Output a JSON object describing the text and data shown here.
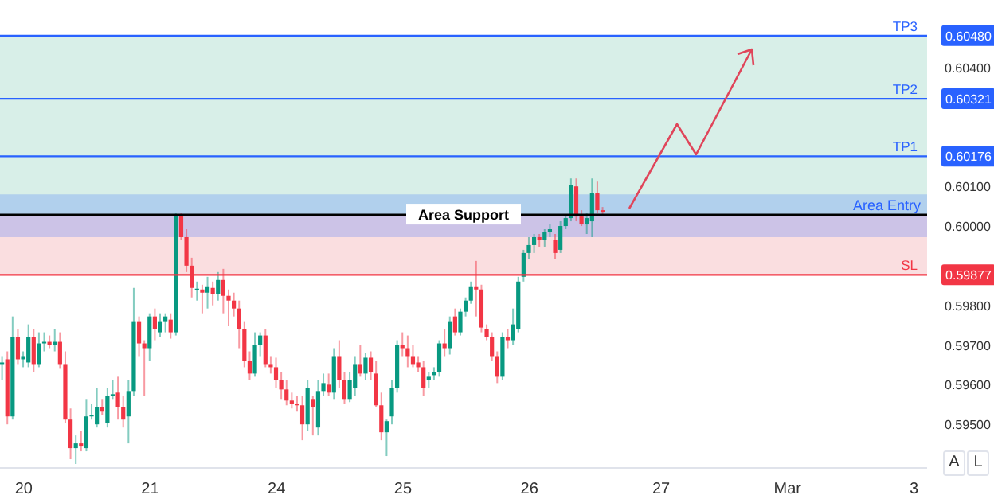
{
  "chart_data": {
    "type": "candlestick",
    "categories": [
      null,
      null,
      null,
      null,
      "20",
      null,
      null,
      null,
      null,
      null,
      null,
      null,
      null,
      null,
      null,
      null,
      null,
      null,
      null,
      null,
      null,
      null,
      null,
      null,
      null,
      null,
      null,
      null,
      "21",
      null,
      null,
      null,
      null,
      null,
      null,
      null,
      null,
      null,
      null,
      null,
      null,
      null,
      null,
      null,
      null,
      null,
      null,
      null,
      null,
      null,
      null,
      null,
      "24",
      null,
      null,
      null,
      null,
      null,
      null,
      null,
      null,
      null,
      null,
      null,
      null,
      null,
      null,
      null,
      null,
      null,
      null,
      null,
      null,
      null,
      null,
      null,
      "25",
      null,
      null,
      null,
      null,
      null,
      null,
      null,
      null,
      null,
      null,
      null,
      null,
      null,
      null,
      null,
      null,
      null,
      null,
      null,
      null,
      null,
      null,
      null,
      "26",
      null,
      null,
      null,
      null,
      null,
      null,
      null,
      null,
      null,
      null,
      null,
      null,
      null,
      null,
      null,
      null,
      null,
      null,
      null,
      null,
      null,
      null,
      null,
      null,
      "27",
      null,
      null,
      null,
      null,
      null,
      null,
      null,
      null,
      null,
      null,
      null,
      null,
      null,
      null,
      null,
      null,
      null,
      null,
      null,
      null,
      null,
      null,
      null,
      "Mar",
      null,
      null,
      null,
      null,
      null,
      null,
      null,
      null,
      null,
      null,
      null,
      null,
      null,
      null,
      null,
      null,
      null,
      null,
      null,
      null,
      null,
      null,
      null,
      "3",
      null,
      null
    ],
    "ohlc": [
      [
        0.59652,
        0.59672,
        0.59612,
        0.59656
      ],
      [
        0.59664,
        0.59684,
        0.595,
        0.5952
      ],
      [
        0.5952,
        0.59772,
        0.59512,
        0.5972
      ],
      [
        0.5972,
        0.5974,
        0.59652,
        0.59664
      ],
      [
        0.59664,
        0.59684,
        0.59644,
        0.59672
      ],
      [
        0.59656,
        0.59752,
        0.59644,
        0.5972
      ],
      [
        0.5972,
        0.5974,
        0.59632,
        0.59652
      ],
      [
        0.59652,
        0.59732,
        0.59644,
        0.59704
      ],
      [
        0.59704,
        0.59732,
        0.59684,
        0.59708
      ],
      [
        0.59708,
        0.59724,
        0.59692,
        0.597
      ],
      [
        0.597,
        0.5974,
        0.59684,
        0.59708
      ],
      [
        0.59708,
        0.59732,
        0.5964,
        0.59652
      ],
      [
        0.59652,
        0.59684,
        0.59504,
        0.59512
      ],
      [
        0.59512,
        0.5954,
        0.59412,
        0.5944
      ],
      [
        0.5944,
        0.59472,
        0.594,
        0.59452
      ],
      [
        0.59452,
        0.59484,
        0.59432,
        0.59444
      ],
      [
        0.5944,
        0.59564,
        0.59432,
        0.5952
      ],
      [
        0.5952,
        0.59552,
        0.59512,
        0.59524
      ],
      [
        0.595,
        0.59592,
        0.59492,
        0.59544
      ],
      [
        0.59544,
        0.59564,
        0.59524,
        0.59532
      ],
      [
        0.59504,
        0.59592,
        0.59492,
        0.59572
      ],
      [
        0.59572,
        0.59612,
        0.59564,
        0.59576
      ],
      [
        0.5958,
        0.5962,
        0.59512,
        0.59544
      ],
      [
        0.59544,
        0.59572,
        0.59492,
        0.59512
      ],
      [
        0.5952,
        0.59612,
        0.59452,
        0.59584
      ],
      [
        0.59584,
        0.59844,
        0.59572,
        0.5976
      ],
      [
        0.5976,
        0.59772,
        0.59672,
        0.59704
      ],
      [
        0.59704,
        0.59712,
        0.59572,
        0.59692
      ],
      [
        0.59692,
        0.5978,
        0.5966,
        0.59772
      ],
      [
        0.59772,
        0.59792,
        0.59712,
        0.5974
      ],
      [
        0.59732,
        0.5978,
        0.5972,
        0.5976
      ],
      [
        0.5976,
        0.5978,
        0.59732,
        0.59772
      ],
      [
        0.59764,
        0.5978,
        0.59716,
        0.59732
      ],
      [
        0.59732,
        0.60032,
        0.59724,
        0.60028
      ],
      [
        0.60028,
        0.60032,
        0.59964,
        0.59972
      ],
      [
        0.59972,
        0.59992,
        0.59884,
        0.599
      ],
      [
        0.599,
        0.5992,
        0.5982,
        0.59844
      ],
      [
        0.5984,
        0.5986,
        0.59812,
        0.59842
      ],
      [
        0.5984,
        0.59852,
        0.5978,
        0.59832
      ],
      [
        0.59832,
        0.59872,
        0.59792,
        0.59848
      ],
      [
        0.59844,
        0.5986,
        0.598,
        0.59828
      ],
      [
        0.59828,
        0.59884,
        0.59812,
        0.59864
      ],
      [
        0.59864,
        0.59892,
        0.5978,
        0.59824
      ],
      [
        0.59824,
        0.5984,
        0.59748,
        0.59812
      ],
      [
        0.59812,
        0.59832,
        0.59772,
        0.59792
      ],
      [
        0.59792,
        0.59812,
        0.59692,
        0.5974
      ],
      [
        0.5974,
        0.5976,
        0.59644,
        0.5966
      ],
      [
        0.5966,
        0.59684,
        0.59612,
        0.59628
      ],
      [
        0.59628,
        0.59732,
        0.5962,
        0.597
      ],
      [
        0.597,
        0.59732,
        0.59672,
        0.59724
      ],
      [
        0.59724,
        0.5974,
        0.59644,
        0.59652
      ],
      [
        0.59652,
        0.59672,
        0.59628,
        0.59644
      ],
      [
        0.59644,
        0.59668,
        0.59592,
        0.59612
      ],
      [
        0.59612,
        0.59632,
        0.59564,
        0.59588
      ],
      [
        0.59588,
        0.59612,
        0.59548,
        0.5956
      ],
      [
        0.5956,
        0.5958,
        0.5954,
        0.59552
      ],
      [
        0.59552,
        0.59572,
        0.59532,
        0.59548
      ],
      [
        0.59548,
        0.59572,
        0.5946,
        0.595
      ],
      [
        0.595,
        0.59612,
        0.59484,
        0.59592
      ],
      [
        0.59564,
        0.59572,
        0.59472,
        0.59544
      ],
      [
        0.59492,
        0.59612,
        0.59472,
        0.59584
      ],
      [
        0.59584,
        0.59628,
        0.59572,
        0.59604
      ],
      [
        0.596,
        0.59628,
        0.59572,
        0.5958
      ],
      [
        0.5958,
        0.59692,
        0.59564,
        0.59672
      ],
      [
        0.59672,
        0.59712,
        0.59592,
        0.59612
      ],
      [
        0.59612,
        0.59632,
        0.59552,
        0.59564
      ],
      [
        0.59564,
        0.59632,
        0.59556,
        0.59612
      ],
      [
        0.59592,
        0.59672,
        0.59572,
        0.59652
      ],
      [
        0.59652,
        0.597,
        0.5962,
        0.59628
      ],
      [
        0.59628,
        0.5968,
        0.59612,
        0.59668
      ],
      [
        0.59668,
        0.59684,
        0.59612,
        0.59632
      ],
      [
        0.59628,
        0.5966,
        0.59544,
        0.59548
      ],
      [
        0.59548,
        0.5958,
        0.5946,
        0.5948
      ],
      [
        0.5948,
        0.59512,
        0.5942,
        0.59508
      ],
      [
        0.5952,
        0.59612,
        0.595,
        0.59592
      ],
      [
        0.59592,
        0.59712,
        0.5958,
        0.597
      ],
      [
        0.597,
        0.59732,
        0.59672,
        0.59692
      ],
      [
        0.59692,
        0.59724,
        0.59644,
        0.59672
      ],
      [
        0.59672,
        0.597,
        0.59644,
        0.59652
      ],
      [
        0.59656,
        0.59672,
        0.59632,
        0.59644
      ],
      [
        0.59644,
        0.5966,
        0.59572,
        0.59592
      ],
      [
        0.59612,
        0.59632,
        0.59592,
        0.5962
      ],
      [
        0.59624,
        0.59644,
        0.59612,
        0.59632
      ],
      [
        0.59632,
        0.59712,
        0.5962,
        0.59704
      ],
      [
        0.59704,
        0.5974,
        0.59672,
        0.59692
      ],
      [
        0.59692,
        0.59772,
        0.59676,
        0.5976
      ],
      [
        0.59772,
        0.59792,
        0.59724,
        0.59732
      ],
      [
        0.59732,
        0.59792,
        0.59724,
        0.59784
      ],
      [
        0.59784,
        0.5982,
        0.59772,
        0.59812
      ],
      [
        0.59812,
        0.5986,
        0.59804,
        0.59848
      ],
      [
        0.59848,
        0.59912,
        0.59772,
        0.5984
      ],
      [
        0.5984,
        0.59852,
        0.59732,
        0.59744
      ],
      [
        0.5974,
        0.59752,
        0.59712,
        0.5972
      ],
      [
        0.5972,
        0.59732,
        0.5966,
        0.59672
      ],
      [
        0.59672,
        0.59684,
        0.59604,
        0.5962
      ],
      [
        0.5962,
        0.59732,
        0.59612,
        0.5972
      ],
      [
        0.5972,
        0.5974,
        0.59692,
        0.59712
      ],
      [
        0.59712,
        0.59792,
        0.597,
        0.59752
      ],
      [
        0.5974,
        0.59872,
        0.59732,
        0.5986
      ],
      [
        0.59872,
        0.5994,
        0.5986,
        0.59932
      ],
      [
        0.59932,
        0.59972,
        0.59916,
        0.59952
      ],
      [
        0.59952,
        0.5998,
        0.59932,
        0.59972
      ],
      [
        0.59972,
        0.5998,
        0.59948,
        0.59964
      ],
      [
        0.59964,
        0.59992,
        0.59948,
        0.59984
      ],
      [
        0.59984,
        0.60004,
        0.59972,
        0.59992
      ],
      [
        0.59964,
        0.5998,
        0.59916,
        0.59932
      ],
      [
        0.5994,
        0.60012,
        0.59932,
        0.6
      ],
      [
        0.6,
        0.60028,
        0.59992,
        0.6002
      ],
      [
        0.6002,
        0.6012,
        0.60012,
        0.60104
      ],
      [
        0.601,
        0.6012,
        0.60012,
        0.60024
      ],
      [
        0.60024,
        0.6004,
        0.6,
        0.60004
      ],
      [
        0.60004,
        0.60032,
        0.5998,
        0.6002
      ],
      [
        0.60012,
        0.6012,
        0.59972,
        0.60084
      ],
      [
        0.60084,
        0.60112,
        0.60032,
        0.6004
      ],
      [
        0.6004,
        0.60048,
        0.60028,
        0.60036
      ],
      null,
      null,
      null,
      null,
      null,
      null,
      null,
      null,
      null,
      null,
      null,
      null,
      null,
      null,
      null,
      null,
      null,
      null,
      null,
      null,
      null,
      null,
      null,
      null,
      null,
      null,
      null,
      null,
      null,
      null,
      null,
      null,
      null,
      null,
      null,
      null,
      null,
      null,
      null,
      null,
      null,
      null,
      null,
      null,
      null,
      null,
      null,
      null,
      null,
      null,
      null,
      null,
      null,
      null,
      null,
      null,
      null,
      null,
      null,
      null,
      null
    ],
    "colors": [
      "#089981",
      "#f23645",
      "#089981",
      "#f23645",
      "#089981",
      "#089981",
      "#f23645",
      "#089981",
      "#089981",
      "#f23645",
      "#089981",
      "#f23645",
      "#f23645",
      "#f23645",
      "#089981",
      "#f23645",
      "#089981",
      "#089981",
      "#089981",
      "#f23645",
      "#089981",
      "#089981",
      "#f23645",
      "#f23645",
      "#089981",
      "#089981",
      "#f23645",
      "#f23645",
      "#089981",
      "#f23645",
      "#089981",
      "#089981",
      "#f23645",
      "#089981",
      "#f23645",
      "#f23645",
      "#f23645",
      "#089981",
      "#f23645",
      "#089981",
      "#f23645",
      "#089981",
      "#f23645",
      "#f23645",
      "#f23645",
      "#f23645",
      "#f23645",
      "#f23645",
      "#089981",
      "#089981",
      "#f23645",
      "#f23645",
      "#f23645",
      "#f23645",
      "#f23645",
      "#f23645",
      "#f23645",
      "#f23645",
      "#089981",
      "#f23645",
      "#089981",
      "#089981",
      "#f23645",
      "#089981",
      "#f23645",
      "#f23645",
      "#089981",
      "#089981",
      "#f23645",
      "#089981",
      "#f23645",
      "#f23645",
      "#f23645",
      "#089981",
      "#089981",
      "#089981",
      "#f23645",
      "#f23645",
      "#f23645",
      "#f23645",
      "#f23645",
      "#089981",
      "#089981",
      "#089981",
      "#f23645",
      "#089981",
      "#f23645",
      "#089981",
      "#089981",
      "#089981",
      "#f23645",
      "#f23645",
      "#f23645",
      "#f23645",
      "#f23645",
      "#089981",
      "#f23645",
      "#089981",
      "#089981",
      "#089981",
      "#089981",
      "#089981",
      "#f23645",
      "#089981",
      "#089981",
      "#f23645",
      "#089981",
      "#089981",
      "#089981",
      "#f23645",
      "#f23645",
      "#089981",
      "#089981",
      "#f23645",
      "#f23645",
      null,
      null,
      null,
      null,
      null,
      null,
      null,
      null,
      null,
      null,
      null,
      null,
      null,
      null,
      null,
      null,
      null,
      null,
      null,
      null,
      null,
      null,
      null,
      null,
      null,
      null,
      null,
      null,
      null,
      null,
      null,
      null,
      null,
      null,
      null,
      null,
      null,
      null,
      null,
      null,
      null,
      null,
      null,
      null,
      null,
      null,
      null,
      null,
      null,
      null,
      null,
      null,
      null,
      null,
      null,
      null,
      null,
      null,
      null,
      null,
      null
    ],
    "ylim": [
      0.5939,
      0.6057
    ],
    "yticks": [
      {
        "value": 0.595,
        "label": "0.59500"
      },
      {
        "value": 0.596,
        "label": "0.59600"
      },
      {
        "value": 0.597,
        "label": "0.59700"
      },
      {
        "value": 0.598,
        "label": "0.59800"
      },
      {
        "value": 0.59877,
        "label": "0.59877"
      },
      {
        "value": 0.6,
        "label": "0.60000"
      },
      {
        "value": 0.601,
        "label": "0.60100"
      },
      {
        "value": 0.60176,
        "label": "0.60176"
      },
      {
        "value": 0.60321,
        "label": "0.60321"
      },
      {
        "value": 0.604,
        "label": "0.60400"
      },
      {
        "value": 0.6048,
        "label": "0.60480"
      }
    ],
    "bands": [
      {
        "axis": "y",
        "from": 0.60028,
        "to": 0.6048,
        "color": "#d4ede6"
      },
      {
        "axis": "y",
        "from": 0.59877,
        "to": 0.60028,
        "color": "#fadadd"
      },
      {
        "axis": "y",
        "from": 0.59972,
        "to": 0.6008,
        "label": "Area Entry",
        "color": "#2962ff"
      }
    ],
    "ref_lines": [
      {
        "axis": "y",
        "value": 0.6048,
        "label": "TP3",
        "color": "#2962ff"
      },
      {
        "axis": "y",
        "value": 0.60321,
        "label": "TP2",
        "color": "#2962ff"
      },
      {
        "axis": "y",
        "value": 0.60176,
        "label": "TP1",
        "color": "#2962ff"
      },
      {
        "axis": "y",
        "value": 0.59877,
        "label": "SL",
        "color": "#f23645"
      },
      {
        "axis": "y",
        "value": 0.60028,
        "label": "Area Support",
        "color": "#000000"
      }
    ],
    "annotations": [
      "A",
      "L"
    ]
  }
}
